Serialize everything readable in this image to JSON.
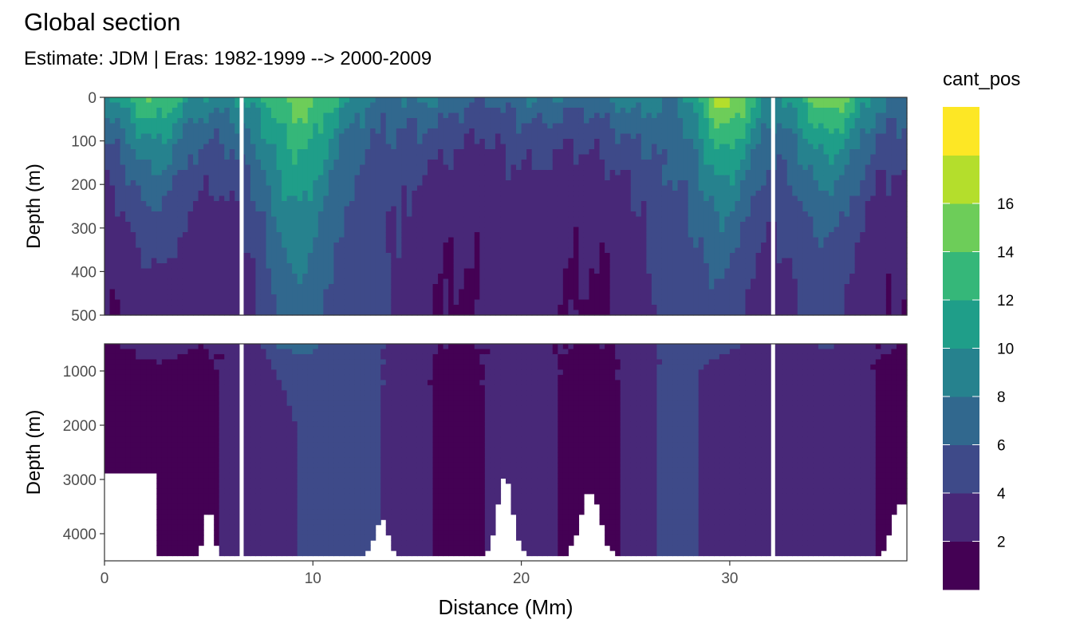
{
  "chart_data": {
    "type": "heatmap",
    "title": "Global section",
    "subtitle": "Estimate: JDM  | Eras: 1982-1999 --> 2000-2009",
    "xlabel": "Distance (Mm)",
    "ylabel": "Depth (m)",
    "xlim": [
      0,
      38.5
    ],
    "x_ticks": [
      0,
      10,
      20,
      30
    ],
    "x_tick_labels": [
      "0",
      "10",
      "20",
      "30"
    ],
    "panels": [
      {
        "name": "upper",
        "ylim": [
          0,
          500
        ],
        "y_ticks": [
          0,
          100,
          200,
          300,
          400,
          500
        ],
        "y_tick_labels": [
          "0",
          "100",
          "200",
          "300",
          "400",
          "500"
        ]
      },
      {
        "name": "lower",
        "ylim": [
          500,
          4500
        ],
        "y_ticks": [
          1000,
          2000,
          3000,
          4000
        ],
        "y_tick_labels": [
          "1000",
          "2000",
          "3000",
          "4000"
        ]
      }
    ],
    "legend": {
      "title": "cant_pos",
      "placement": "right",
      "break_labels": [
        "2",
        "4",
        "6",
        "8",
        "10",
        "12",
        "14",
        "16"
      ],
      "colors": [
        "#440154",
        "#482878",
        "#3E4A89",
        "#31688E",
        "#26828E",
        "#1F9E89",
        "#35B779",
        "#6DCD59",
        "#B4DE2C",
        "#FDE725"
      ]
    },
    "contour_levels": [
      0,
      2,
      4,
      6,
      8,
      10,
      12,
      14,
      16,
      18
    ],
    "gaps_x": [
      6.6,
      32.1
    ]
  }
}
